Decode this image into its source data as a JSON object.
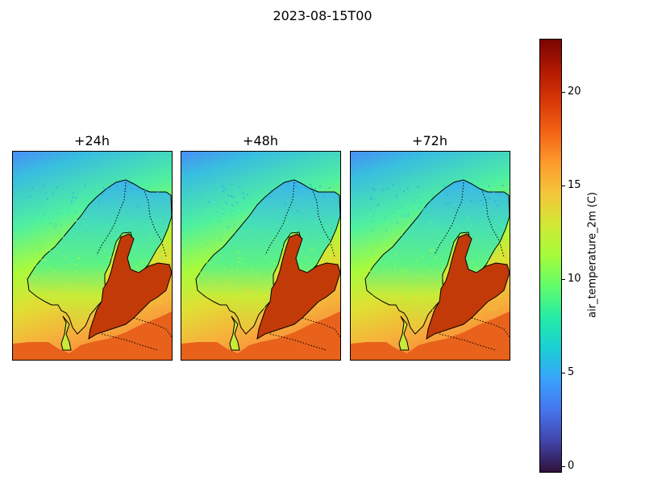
{
  "figure": {
    "title": "2023-08-15T00"
  },
  "panels": [
    {
      "label": "+24h"
    },
    {
      "label": "+48h"
    },
    {
      "label": "+72h"
    }
  ],
  "colorbar": {
    "label": "air_temperature_2m (C)",
    "min": -0.3,
    "max": 22.8,
    "ticks": [
      0,
      5,
      10,
      15,
      20
    ],
    "tick_labels": [
      "0",
      "5",
      "10",
      "15",
      "20"
    ],
    "colormap": "turbo",
    "colormap_stops": [
      "#30123b",
      "#4145ab",
      "#4675ed",
      "#39a2fc",
      "#1bcfd4",
      "#24eca6",
      "#61fc6c",
      "#a4fc3b",
      "#d1e834",
      "#f3c63a",
      "#fe9b2d",
      "#f36315",
      "#d93806",
      "#b11901",
      "#7a0402"
    ]
  },
  "map": {
    "region": "Scandinavia and Baltic Sea",
    "sea_color": "#c23a08",
    "land_colors": {
      "cold": "#3ab4ec",
      "cool": "#5df283",
      "warm": "#f3be3a"
    },
    "features": [
      "coastlines",
      "national borders"
    ]
  }
}
